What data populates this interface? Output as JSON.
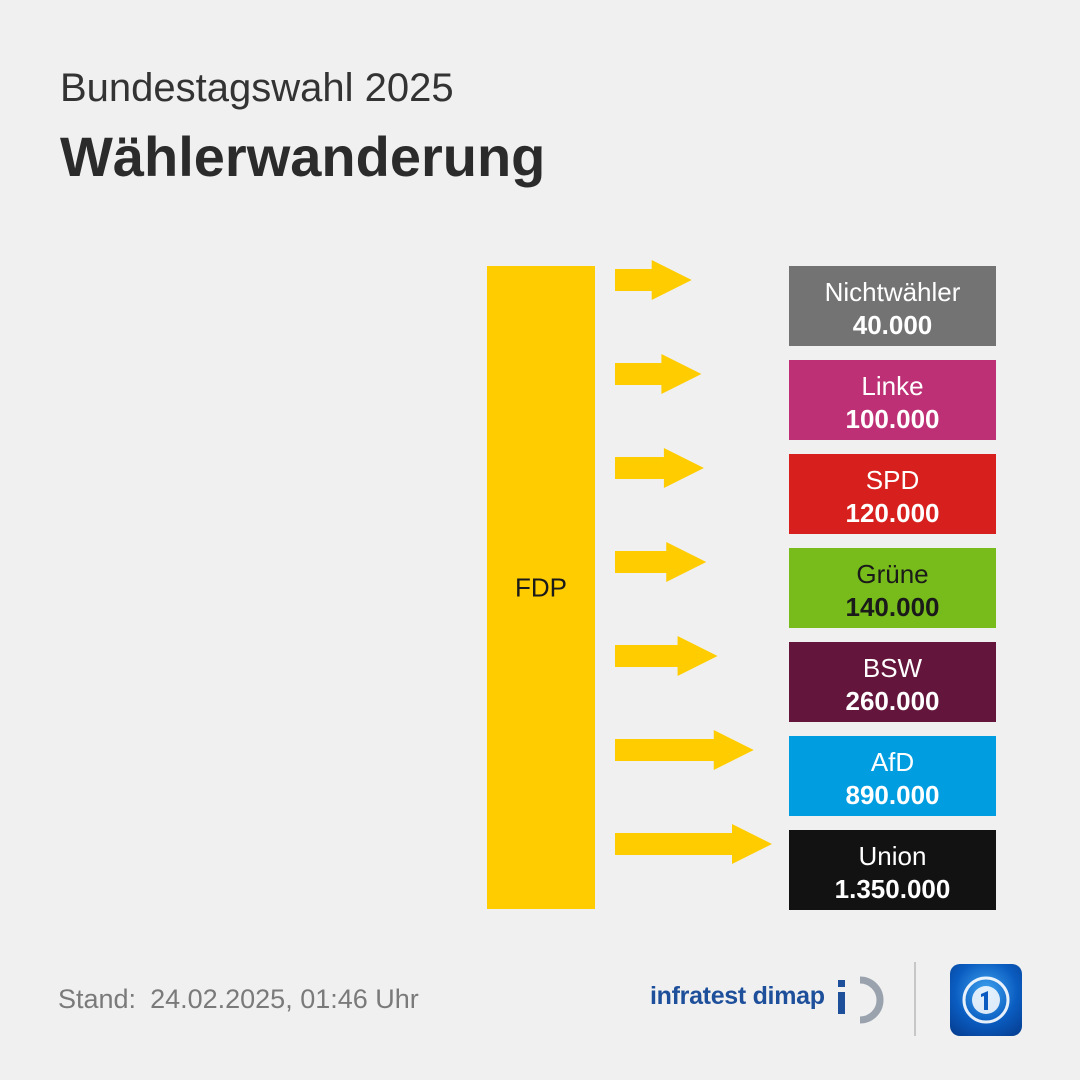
{
  "header": {
    "subtitle": "Bundestagswahl 2025",
    "title": "Wählerwanderung"
  },
  "chart_data": {
    "type": "bar",
    "title": "Wählerwanderung",
    "source_party": "FDP",
    "source_color": "#ffcc00",
    "unit": "Wähler",
    "targets": [
      {
        "name": "Nichtwähler",
        "value": 40000,
        "label": "40.000",
        "color": "#737373",
        "text_color": "#ffffff"
      },
      {
        "name": "Linke",
        "value": 100000,
        "label": "100.000",
        "color": "#be3075",
        "text_color": "#ffffff"
      },
      {
        "name": "SPD",
        "value": 120000,
        "label": "120.000",
        "color": "#d71f1d",
        "text_color": "#ffffff"
      },
      {
        "name": "Grüne",
        "value": 140000,
        "label": "140.000",
        "color": "#78bc1b",
        "text_color": "#1a1a1a"
      },
      {
        "name": "BSW",
        "value": 260000,
        "label": "260.000",
        "color": "#63153b",
        "text_color": "#ffffff"
      },
      {
        "name": "AfD",
        "value": 890000,
        "label": "890.000",
        "color": "#009ee0",
        "text_color": "#ffffff"
      },
      {
        "name": "Union",
        "value": 1350000,
        "label": "1.350.000",
        "color": "#121212",
        "text_color": "#ffffff"
      }
    ]
  },
  "footer": {
    "stand_label": "Stand:",
    "stand_value": "24.02.2025, 01:46 Uhr",
    "brand": "infratest dimap"
  }
}
